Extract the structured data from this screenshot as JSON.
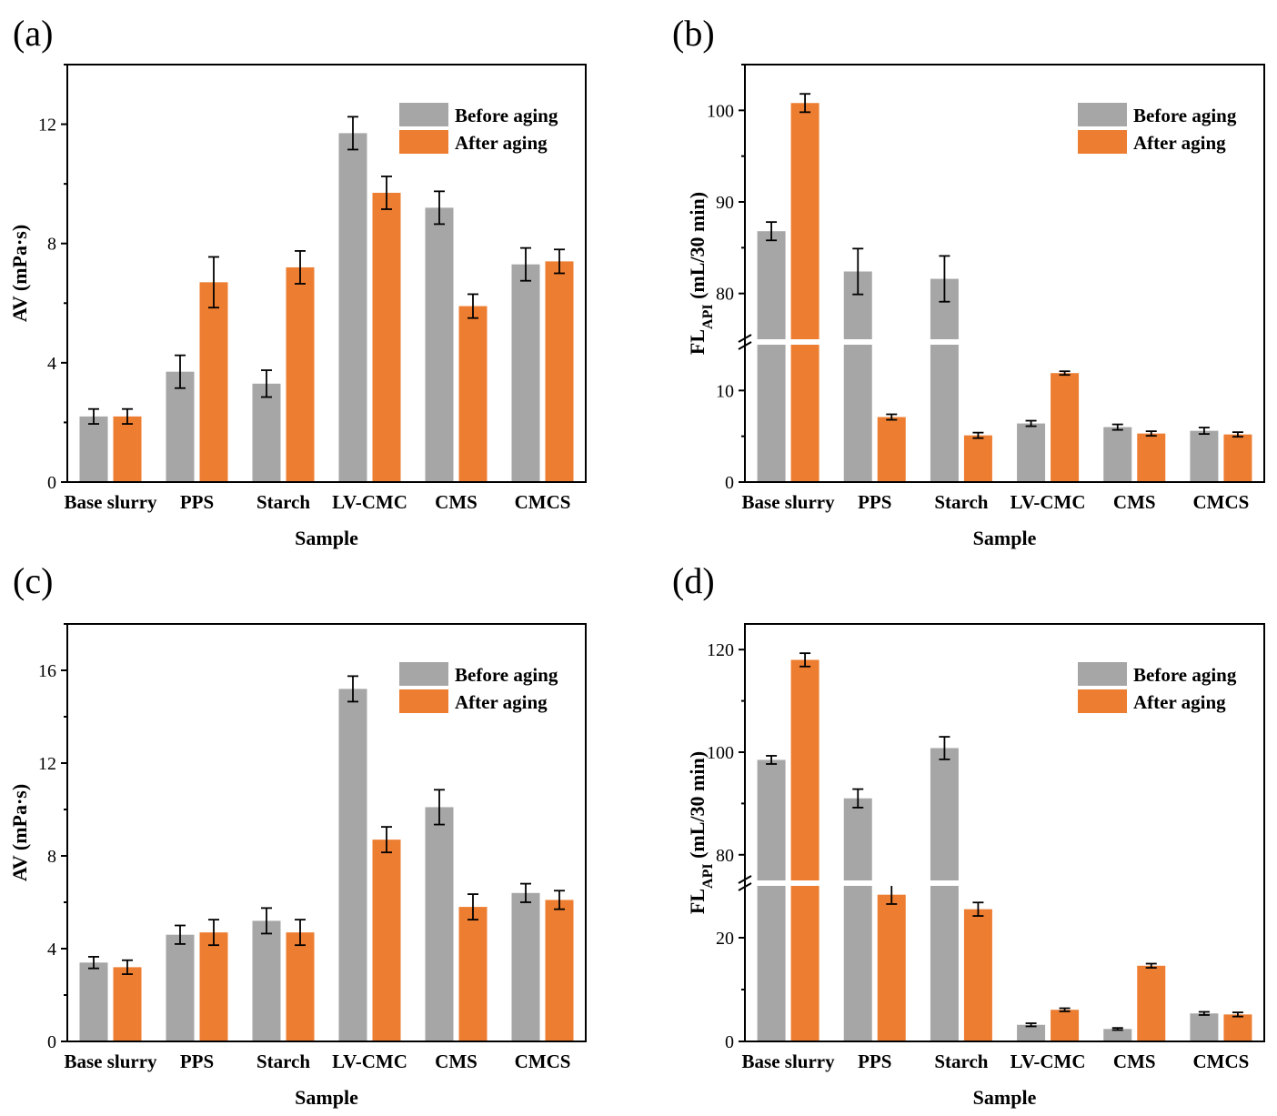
{
  "colors": {
    "before": "#a6a6a6",
    "after": "#ed7d31",
    "axis": "#000000"
  },
  "chart_data": [
    {
      "panel": "(a)",
      "type": "bar",
      "title": "",
      "xlabel": "Sample",
      "ylabel": "AV (mPa·s)",
      "categories": [
        "Base slurry",
        "PPS",
        "Starch",
        "LV-CMC",
        "CMS",
        "CMCS"
      ],
      "ylim": [
        0,
        14
      ],
      "yticks": [
        0,
        4,
        8,
        12
      ],
      "legend": {
        "position": "top-right",
        "entries": [
          "Before aging",
          "After aging"
        ]
      },
      "series": [
        {
          "name": "Before aging",
          "values": [
            2.2,
            3.7,
            3.3,
            11.7,
            9.2,
            7.3
          ],
          "errors": [
            0.25,
            0.55,
            0.45,
            0.55,
            0.55,
            0.55
          ]
        },
        {
          "name": "After aging",
          "values": [
            2.2,
            6.7,
            7.2,
            9.7,
            5.9,
            7.4
          ],
          "errors": [
            0.25,
            0.85,
            0.55,
            0.55,
            0.4,
            0.4
          ]
        }
      ]
    },
    {
      "panel": "(b)",
      "type": "bar",
      "title": "",
      "xlabel": "Sample",
      "ylabel": "FL",
      "ylabel_sub": "API",
      "ylabel_tail": " (mL/30 min)",
      "categories": [
        "Base slurry",
        "PPS",
        "Starch",
        "LV-CMC",
        "CMS",
        "CMCS"
      ],
      "axis_break": {
        "lower": [
          0,
          15
        ],
        "upper": [
          75,
          105
        ]
      },
      "yticks": [
        0,
        10,
        80,
        90,
        100
      ],
      "legend": {
        "position": "top-right",
        "entries": [
          "Before aging",
          "After aging"
        ]
      },
      "series": [
        {
          "name": "Before aging",
          "values": [
            86.8,
            82.4,
            81.6,
            6.4,
            6.0,
            5.6
          ],
          "errors": [
            1.0,
            2.5,
            2.5,
            0.3,
            0.3,
            0.35
          ]
        },
        {
          "name": "After aging",
          "values": [
            100.8,
            7.1,
            5.1,
            11.9,
            5.3,
            5.2
          ],
          "errors": [
            1.0,
            0.3,
            0.3,
            0.2,
            0.25,
            0.25
          ]
        }
      ]
    },
    {
      "panel": "(c)",
      "type": "bar",
      "title": "",
      "xlabel": "Sample",
      "ylabel": "AV (mPa·s)",
      "categories": [
        "Base slurry",
        "PPS",
        "Starch",
        "LV-CMC",
        "CMS",
        "CMCS"
      ],
      "ylim": [
        0,
        18
      ],
      "yticks": [
        0,
        4,
        8,
        12,
        16
      ],
      "legend": {
        "position": "top-right",
        "entries": [
          "Before aging",
          "After aging"
        ]
      },
      "series": [
        {
          "name": "Before aging",
          "values": [
            3.4,
            4.6,
            5.2,
            15.2,
            10.1,
            6.4
          ],
          "errors": [
            0.25,
            0.4,
            0.55,
            0.55,
            0.75,
            0.4
          ]
        },
        {
          "name": "After aging",
          "values": [
            3.2,
            4.7,
            4.7,
            8.7,
            5.8,
            6.1
          ],
          "errors": [
            0.3,
            0.55,
            0.55,
            0.55,
            0.55,
            0.4
          ]
        }
      ]
    },
    {
      "panel": "(d)",
      "type": "bar",
      "title": "",
      "xlabel": "Sample",
      "ylabel": "FL",
      "ylabel_sub": "API",
      "ylabel_tail": " (mL/30 min)",
      "categories": [
        "Base slurry",
        "PPS",
        "Starch",
        "LV-CMC",
        "CMS",
        "CMCS"
      ],
      "axis_break": {
        "lower": [
          0,
          30
        ],
        "upper": [
          75,
          125
        ]
      },
      "yticks": [
        0,
        20,
        80,
        100,
        120
      ],
      "legend": {
        "position": "top-right",
        "entries": [
          "Before aging",
          "After aging"
        ]
      },
      "series": [
        {
          "name": "Before aging",
          "values": [
            98.5,
            91.0,
            100.8,
            3.2,
            2.4,
            5.4
          ],
          "errors": [
            0.8,
            1.8,
            2.2,
            0.3,
            0.2,
            0.3
          ]
        },
        {
          "name": "After aging",
          "values": [
            118.0,
            28.3,
            25.5,
            6.1,
            14.6,
            5.2
          ],
          "errors": [
            1.3,
            1.8,
            1.3,
            0.3,
            0.4,
            0.4
          ]
        }
      ]
    }
  ]
}
